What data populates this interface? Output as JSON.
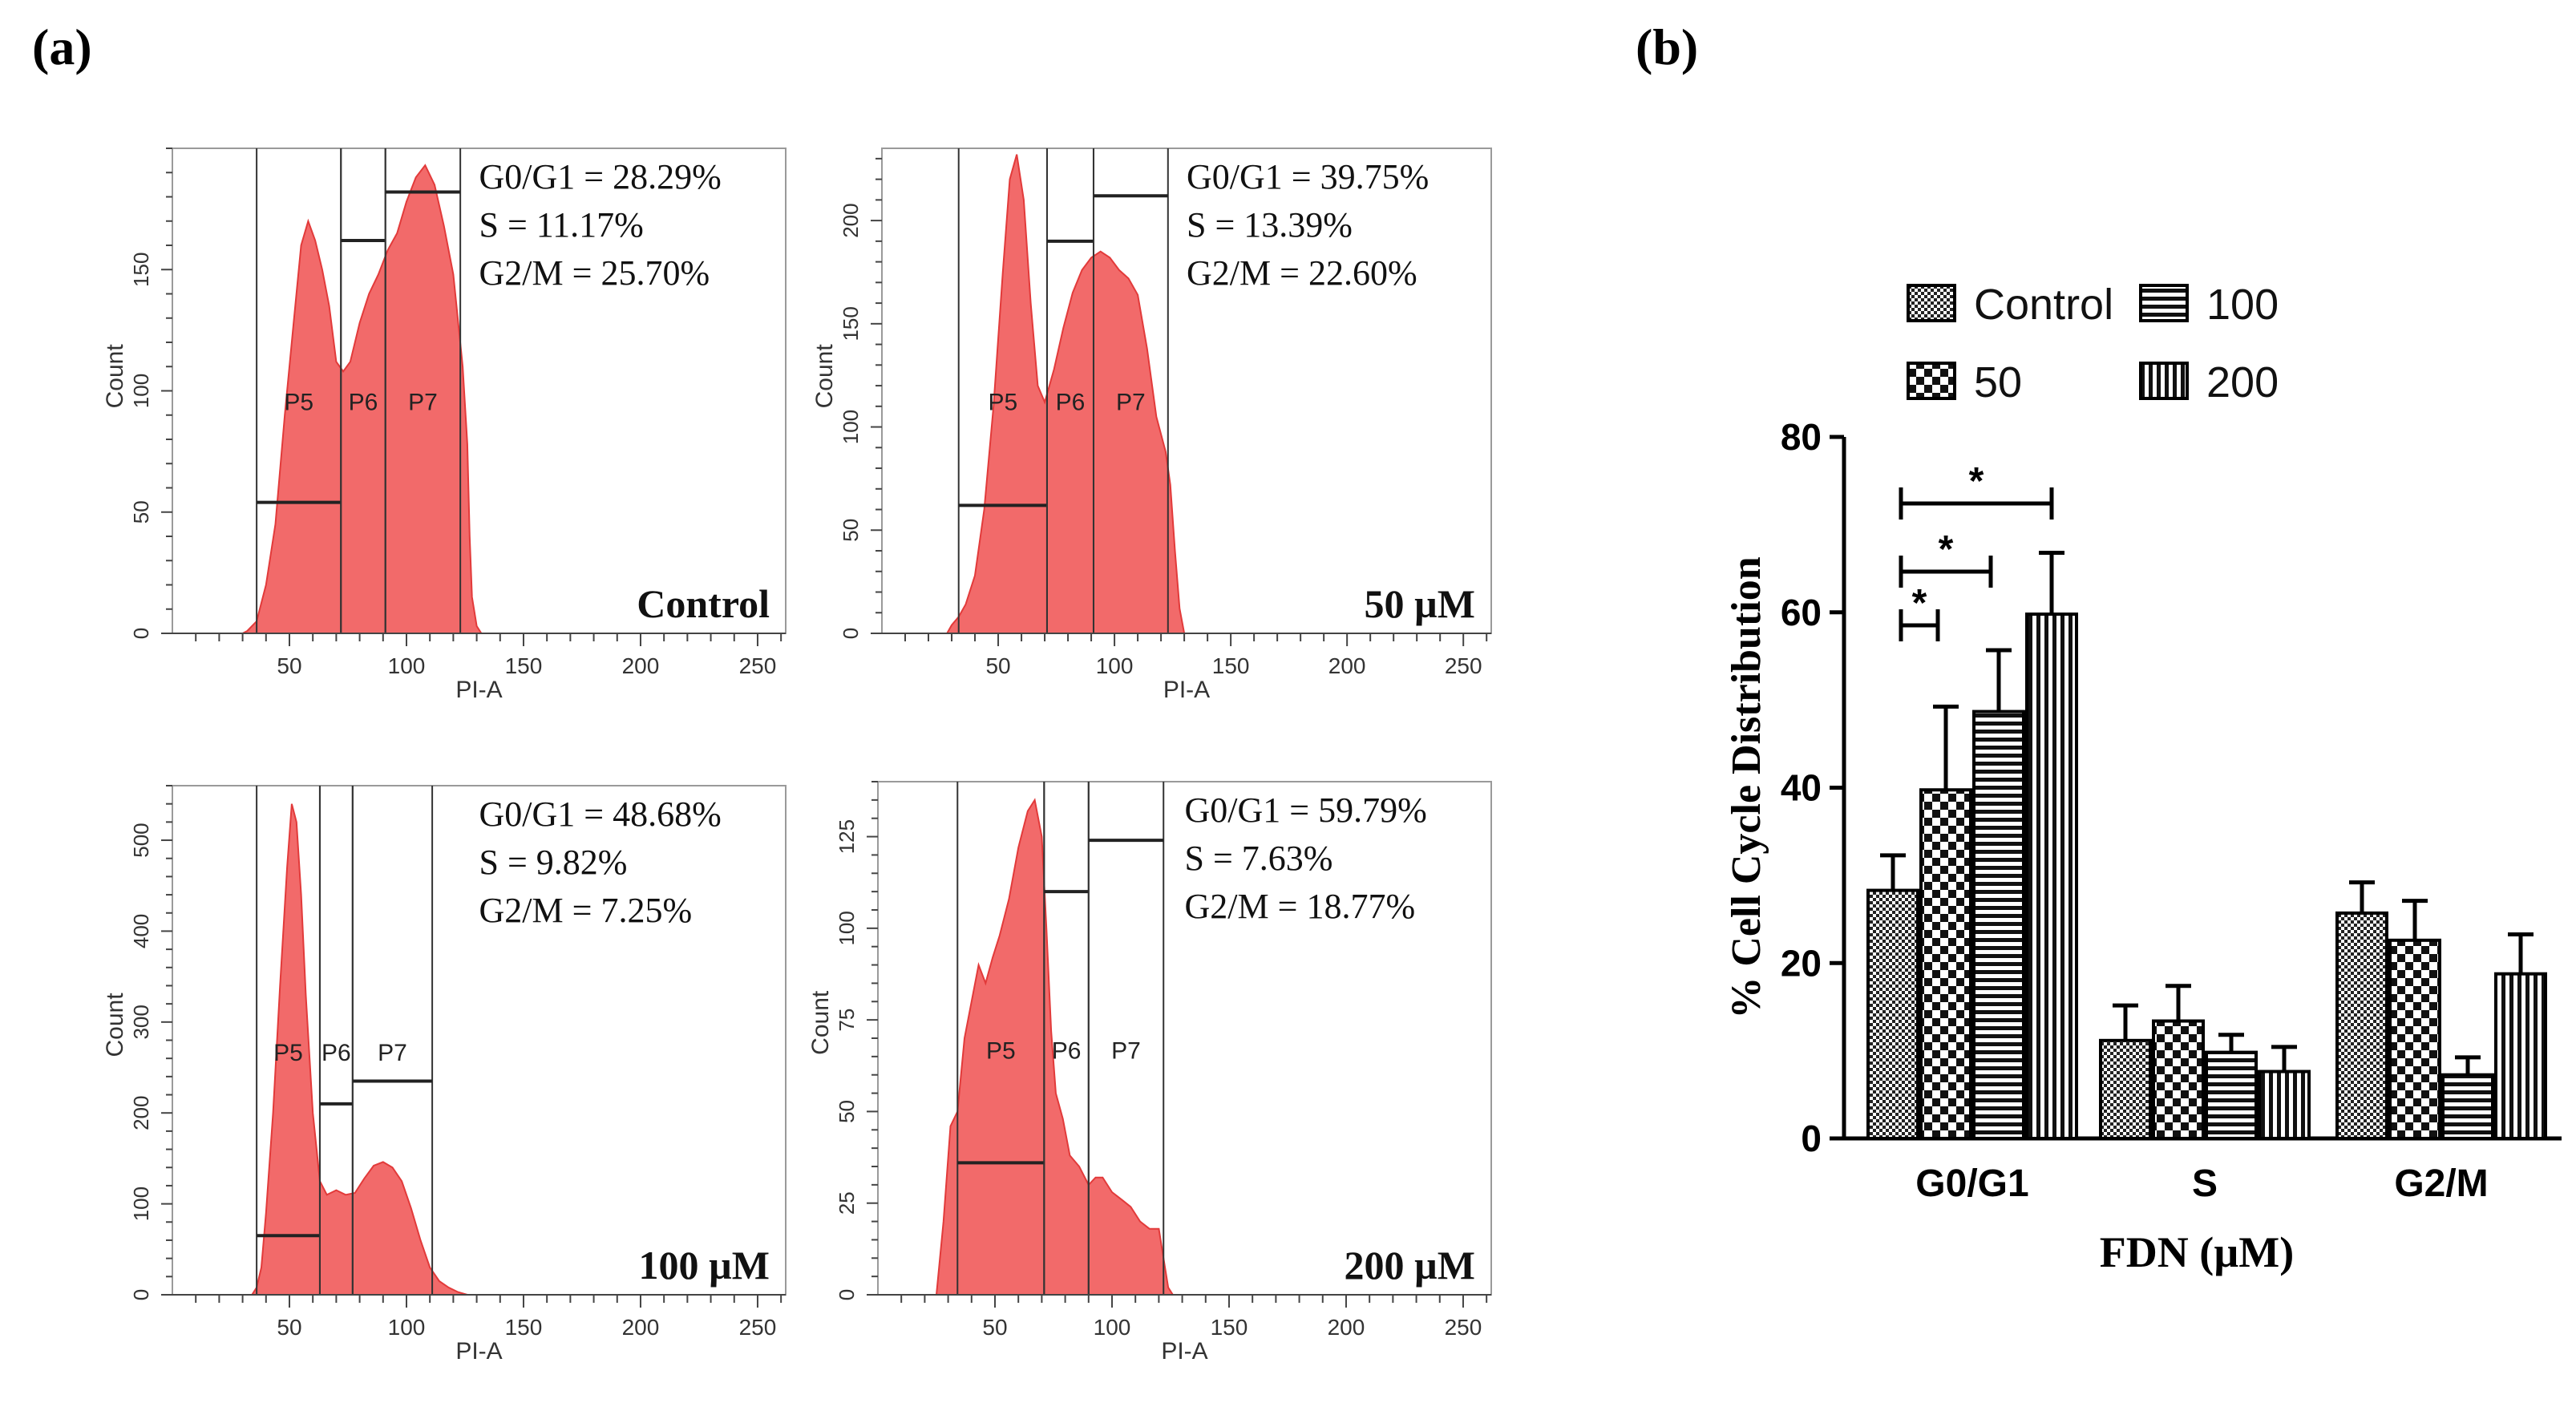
{
  "panels": {
    "a_label": "(a)",
    "b_label": "(b)"
  },
  "histograms": [
    {
      "condition": "Control",
      "stats": [
        "G0/G1 = 28.29%",
        "S = 11.17%",
        "G2/M = 25.70%"
      ],
      "y_ticks": [
        0,
        50,
        100,
        150
      ],
      "y_max": 200,
      "y_label": "Count",
      "x_label": "PI-A",
      "x_ticks": [
        50,
        100,
        150,
        200,
        250
      ],
      "x_range": [
        0,
        262
      ],
      "gates": [
        "P5",
        "P6",
        "P7"
      ],
      "gate_bounds": [
        [
          36,
          72
        ],
        [
          72,
          91
        ],
        [
          91,
          123
        ]
      ],
      "gate_levels": [
        54,
        162,
        182
      ],
      "curve": [
        [
          30,
          0
        ],
        [
          32,
          1
        ],
        [
          36,
          5
        ],
        [
          40,
          20
        ],
        [
          44,
          45
        ],
        [
          48,
          90
        ],
        [
          52,
          130
        ],
        [
          55,
          160
        ],
        [
          58,
          170
        ],
        [
          61,
          162
        ],
        [
          64,
          150
        ],
        [
          67,
          135
        ],
        [
          70,
          112
        ],
        [
          73,
          108
        ],
        [
          76,
          112
        ],
        [
          80,
          128
        ],
        [
          84,
          140
        ],
        [
          88,
          148
        ],
        [
          92,
          158
        ],
        [
          96,
          165
        ],
        [
          100,
          178
        ],
        [
          104,
          188
        ],
        [
          108,
          193
        ],
        [
          112,
          185
        ],
        [
          116,
          168
        ],
        [
          120,
          148
        ],
        [
          124,
          110
        ],
        [
          126,
          78
        ],
        [
          127,
          40
        ],
        [
          128,
          15
        ],
        [
          130,
          3
        ],
        [
          132,
          0
        ]
      ]
    },
    {
      "condition": "50 µM",
      "stats": [
        "G0/G1 = 39.75%",
        "S = 13.39%",
        "G2/M = 22.60%"
      ],
      "y_ticks": [
        0,
        50,
        100,
        150,
        200
      ],
      "y_max": 235,
      "y_label": "Count",
      "x_label": "PI-A",
      "x_ticks": [
        50,
        100,
        150,
        200,
        250
      ],
      "x_range": [
        0,
        262
      ],
      "gates": [
        "P5",
        "P6",
        "P7"
      ],
      "gate_bounds": [
        [
          33,
          71
        ],
        [
          71,
          91
        ],
        [
          91,
          123
        ]
      ],
      "gate_levels": [
        62,
        190,
        212
      ],
      "curve": [
        [
          28,
          0
        ],
        [
          30,
          4
        ],
        [
          33,
          8
        ],
        [
          36,
          14
        ],
        [
          40,
          28
        ],
        [
          44,
          60
        ],
        [
          48,
          110
        ],
        [
          52,
          175
        ],
        [
          55,
          220
        ],
        [
          58,
          232
        ],
        [
          61,
          210
        ],
        [
          64,
          160
        ],
        [
          67,
          120
        ],
        [
          70,
          112
        ],
        [
          74,
          128
        ],
        [
          78,
          148
        ],
        [
          82,
          165
        ],
        [
          86,
          176
        ],
        [
          90,
          182
        ],
        [
          94,
          185
        ],
        [
          98,
          182
        ],
        [
          102,
          176
        ],
        [
          106,
          172
        ],
        [
          110,
          164
        ],
        [
          114,
          138
        ],
        [
          118,
          105
        ],
        [
          122,
          88
        ],
        [
          124,
          72
        ],
        [
          126,
          40
        ],
        [
          128,
          12
        ],
        [
          130,
          0
        ]
      ]
    },
    {
      "condition": "100 µM",
      "stats": [
        "G0/G1 = 48.68%",
        "S = 9.82%",
        "G2/M = 7.25%"
      ],
      "y_ticks": [
        0,
        100,
        200,
        300,
        400,
        500
      ],
      "y_max": 560,
      "y_label": "Count",
      "x_label": "PI-A",
      "x_ticks": [
        50,
        100,
        150,
        200,
        250
      ],
      "x_range": [
        0,
        262
      ],
      "gates": [
        "P5",
        "P6",
        "P7"
      ],
      "gate_bounds": [
        [
          36,
          63
        ],
        [
          63,
          77
        ],
        [
          77,
          111
        ]
      ],
      "gate_levels": [
        65,
        210,
        235
      ],
      "curve": [
        [
          34,
          0
        ],
        [
          36,
          8
        ],
        [
          38,
          30
        ],
        [
          40,
          90
        ],
        [
          43,
          200
        ],
        [
          46,
          340
        ],
        [
          49,
          470
        ],
        [
          51,
          540
        ],
        [
          53,
          520
        ],
        [
          55,
          440
        ],
        [
          57,
          330
        ],
        [
          60,
          200
        ],
        [
          63,
          125
        ],
        [
          66,
          110
        ],
        [
          70,
          115
        ],
        [
          74,
          110
        ],
        [
          78,
          112
        ],
        [
          82,
          128
        ],
        [
          86,
          142
        ],
        [
          90,
          146
        ],
        [
          94,
          140
        ],
        [
          98,
          125
        ],
        [
          102,
          95
        ],
        [
          106,
          60
        ],
        [
          110,
          30
        ],
        [
          114,
          15
        ],
        [
          118,
          8
        ],
        [
          122,
          3
        ],
        [
          126,
          0
        ]
      ]
    },
    {
      "condition": "200 µM",
      "stats": [
        "G0/G1 = 59.79%",
        "S = 7.63%",
        "G2/M = 18.77%"
      ],
      "y_ticks": [
        0,
        25,
        50,
        75,
        100,
        125
      ],
      "y_max": 140,
      "y_label": "Count",
      "x_label": "PI-A",
      "x_ticks": [
        50,
        100,
        150,
        200,
        250
      ],
      "x_range": [
        0,
        262
      ],
      "gates": [
        "P5",
        "P6",
        "P7"
      ],
      "gate_bounds": [
        [
          34,
          71
        ],
        [
          71,
          90
        ],
        [
          90,
          122
        ]
      ],
      "gate_levels": [
        36,
        110,
        124
      ],
      "curve": [
        [
          25,
          0
        ],
        [
          28,
          20
        ],
        [
          31,
          46
        ],
        [
          34,
          50
        ],
        [
          37,
          70
        ],
        [
          40,
          80
        ],
        [
          43,
          90
        ],
        [
          46,
          85
        ],
        [
          49,
          92
        ],
        [
          52,
          98
        ],
        [
          56,
          108
        ],
        [
          60,
          122
        ],
        [
          64,
          132
        ],
        [
          67,
          135
        ],
        [
          70,
          125
        ],
        [
          72,
          100
        ],
        [
          74,
          72
        ],
        [
          76,
          55
        ],
        [
          79,
          48
        ],
        [
          82,
          38
        ],
        [
          86,
          35
        ],
        [
          90,
          30
        ],
        [
          93,
          32
        ],
        [
          96,
          32
        ],
        [
          100,
          28
        ],
        [
          104,
          26
        ],
        [
          108,
          24
        ],
        [
          112,
          20
        ],
        [
          116,
          18
        ],
        [
          120,
          18
        ],
        [
          122,
          10
        ],
        [
          124,
          2
        ],
        [
          126,
          0
        ]
      ]
    }
  ],
  "chart_data": {
    "type": "bar",
    "title": "",
    "categories": [
      "G0/G1",
      "S",
      "G2/M"
    ],
    "series": [
      {
        "name": "Control",
        "values": [
          28.29,
          11.17,
          25.7
        ],
        "errors": [
          4.0,
          4.0,
          3.5
        ]
      },
      {
        "name": "50",
        "values": [
          39.75,
          13.39,
          22.6
        ],
        "errors": [
          9.5,
          4.0,
          4.5
        ]
      },
      {
        "name": "100",
        "values": [
          48.68,
          9.82,
          7.25
        ],
        "errors": [
          7.0,
          2.0,
          2.0
        ]
      },
      {
        "name": "200",
        "values": [
          59.79,
          7.63,
          18.77
        ],
        "errors": [
          7.0,
          2.8,
          4.5
        ]
      }
    ],
    "xlabel": "FDN (µM)",
    "ylabel": "% Cell Cycle Distribution",
    "ylim": [
      0,
      80
    ],
    "yticks": [
      0,
      20,
      40,
      60,
      80
    ],
    "legend_position": "top",
    "significance": [
      {
        "label": "*",
        "from_series": 0,
        "to_series": 1,
        "category": 0
      },
      {
        "label": "*",
        "from_series": 0,
        "to_series": 2,
        "category": 0
      },
      {
        "label": "*",
        "from_series": 0,
        "to_series": 3,
        "category": 0
      }
    ]
  }
}
